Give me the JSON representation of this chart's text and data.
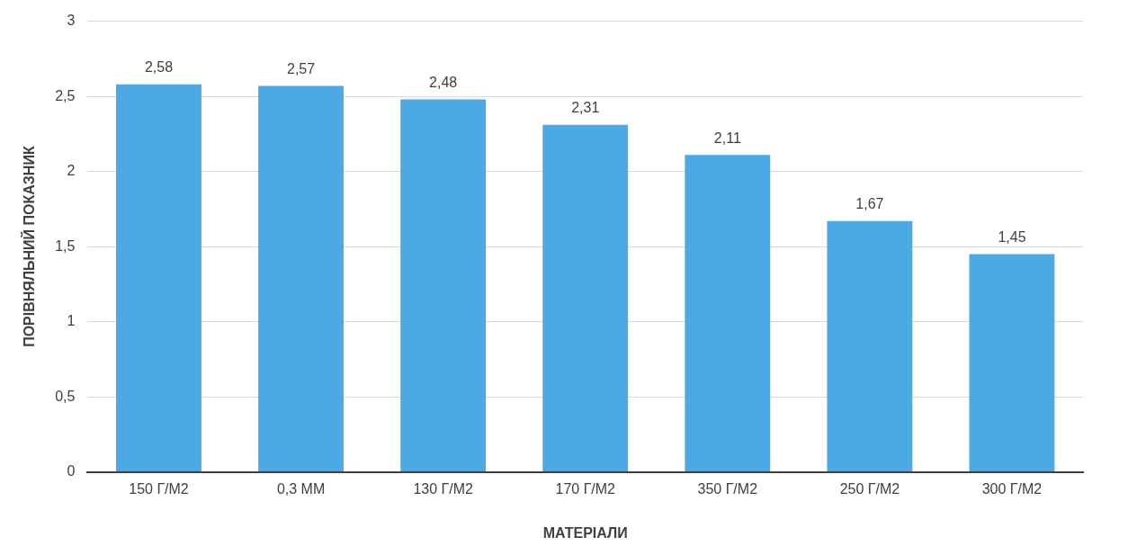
{
  "chart_data": {
    "type": "bar",
    "xlabel": "МАТЕРІАЛИ",
    "ylabel": "ПОРІВНЯЛЬНИЙ ПОКАЗНИК",
    "categories": [
      "150 Г/М2",
      "0,3 ММ",
      "130 Г/М2",
      "170 Г/М2",
      "350 Г/М2",
      "250 Г/М2",
      "300 Г/М2"
    ],
    "values": [
      2.58,
      2.57,
      2.48,
      2.31,
      2.11,
      1.67,
      1.45
    ],
    "value_labels": [
      "2,58",
      "2,57",
      "2,48",
      "2,31",
      "2,11",
      "1,67",
      "1,45"
    ],
    "color": "#4ba9e3",
    "ylim": [
      0,
      3
    ],
    "yticks": [
      0,
      {
        "value": 0.5,
        "label": "0,5"
      },
      1,
      {
        "value": 1.5,
        "label": "1,5"
      },
      2,
      {
        "value": 2.5,
        "label": "2,5"
      },
      3
    ],
    "grid": "y",
    "legend": false
  }
}
